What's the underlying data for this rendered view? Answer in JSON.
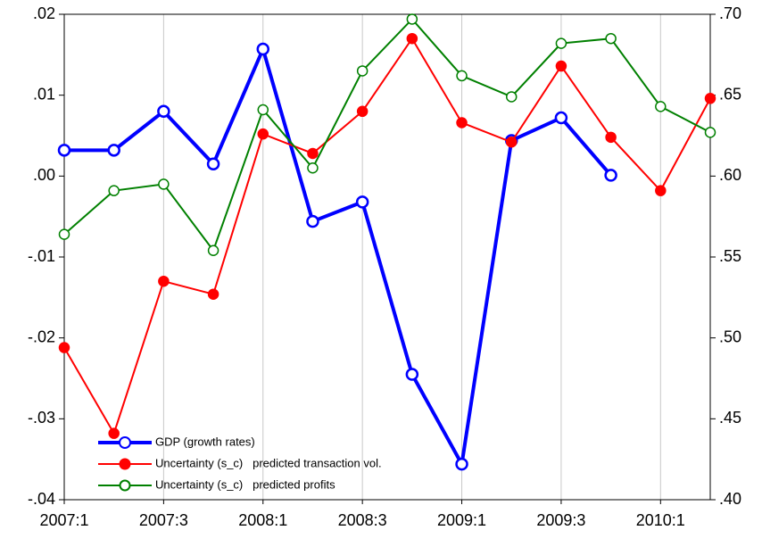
{
  "chart_data": {
    "type": "line",
    "categories": [
      "2007:1",
      null,
      "2007:3",
      null,
      "2008:1",
      null,
      "2008:3",
      null,
      "2009:1",
      null,
      "2009:3",
      null,
      "2010:1",
      null
    ],
    "ylim": [
      -0.04,
      0.02
    ],
    "yticks": [
      {
        "value": 0.02,
        "label": ".02"
      },
      {
        "value": 0.01,
        "label": ".01"
      },
      {
        "value": 0,
        "label": ".00"
      },
      {
        "value": -0.01,
        "label": "-.01"
      },
      {
        "value": -0.02,
        "label": "-.02"
      },
      {
        "value": -0.03,
        "label": "-.03"
      },
      {
        "value": -0.04,
        "label": "-.04"
      }
    ],
    "y2lim": [
      0.4,
      0.7
    ],
    "y2ticks": [
      {
        "value": 0.7,
        "label": ".70"
      },
      {
        "value": 0.65,
        "label": ".65"
      },
      {
        "value": 0.6,
        "label": ".60"
      },
      {
        "value": 0.55,
        "label": ".55"
      },
      {
        "value": 0.5,
        "label": ".50"
      },
      {
        "value": 0.45,
        "label": ".45"
      },
      {
        "value": 0.4,
        "label": ".40"
      }
    ],
    "grid": true,
    "legend": "lower-left",
    "series": [
      {
        "name": "GDP (growth rates)",
        "color": "#0000ff",
        "marker": "open",
        "axis": "y",
        "values": [
          0.0032,
          0.0032,
          0.008,
          0.0015,
          0.0157,
          -0.0056,
          -0.0032,
          -0.0245,
          -0.0356,
          0.0044,
          0.0072,
          0.0001,
          null,
          null
        ]
      },
      {
        "name": "Uncertainty (s_c)   predicted transaction vol.",
        "color": "#ff0000",
        "marker": "filled",
        "axis": "y2",
        "values": [
          0.494,
          0.441,
          0.535,
          0.527,
          0.626,
          0.614,
          0.64,
          0.685,
          0.633,
          0.621,
          0.668,
          0.624,
          0.591,
          0.648
        ]
      },
      {
        "name": "Uncertainty (s_c)   predicted profits",
        "color": "#008000",
        "marker": "open",
        "axis": "y2",
        "values": [
          0.564,
          0.591,
          0.595,
          0.554,
          0.641,
          0.605,
          0.665,
          0.697,
          0.662,
          0.649,
          0.682,
          0.685,
          0.643,
          0.627
        ]
      }
    ]
  }
}
